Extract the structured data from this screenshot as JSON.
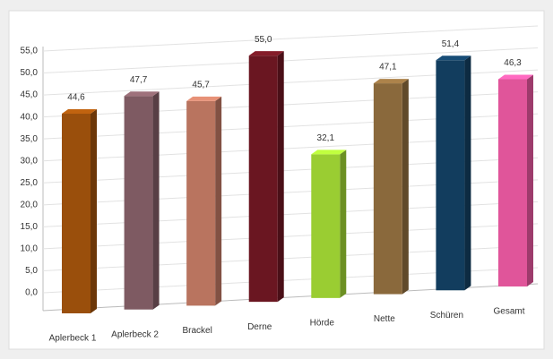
{
  "chart_data": {
    "type": "bar3d",
    "categories": [
      "Aplerbeck 1",
      "Aplerbeck 2",
      "Brackel",
      "Derne",
      "Hörde",
      "Nette",
      "Schüren",
      "Gesamt"
    ],
    "values": [
      44.6,
      47.7,
      45.7,
      55.0,
      32.1,
      47.1,
      51.4,
      46.3
    ],
    "value_labels": [
      "44,6",
      "47,7",
      "45,7",
      "55,0",
      "32,1",
      "47,1",
      "51,4",
      "46,3"
    ],
    "colors": [
      "#9a4f0c",
      "#7e5a62",
      "#b9745f",
      "#6a1621",
      "#9acd32",
      "#8a693c",
      "#123d5e",
      "#e0559a"
    ],
    "ylim": [
      0,
      55
    ],
    "yticks": [
      {
        "value": 0,
        "label": "0,0"
      },
      {
        "value": 5,
        "label": "5,0"
      },
      {
        "value": 10,
        "label": "10,0"
      },
      {
        "value": 15,
        "label": "15,0"
      },
      {
        "value": 20,
        "label": "20,0"
      },
      {
        "value": 25,
        "label": "25,0"
      },
      {
        "value": 30,
        "label": "30,0"
      },
      {
        "value": 35,
        "label": "35,0"
      },
      {
        "value": 40,
        "label": "40,0"
      },
      {
        "value": 45,
        "label": "45,0"
      },
      {
        "value": 50,
        "label": "50,0"
      },
      {
        "value": 55,
        "label": "55,0"
      }
    ],
    "grid": true
  }
}
